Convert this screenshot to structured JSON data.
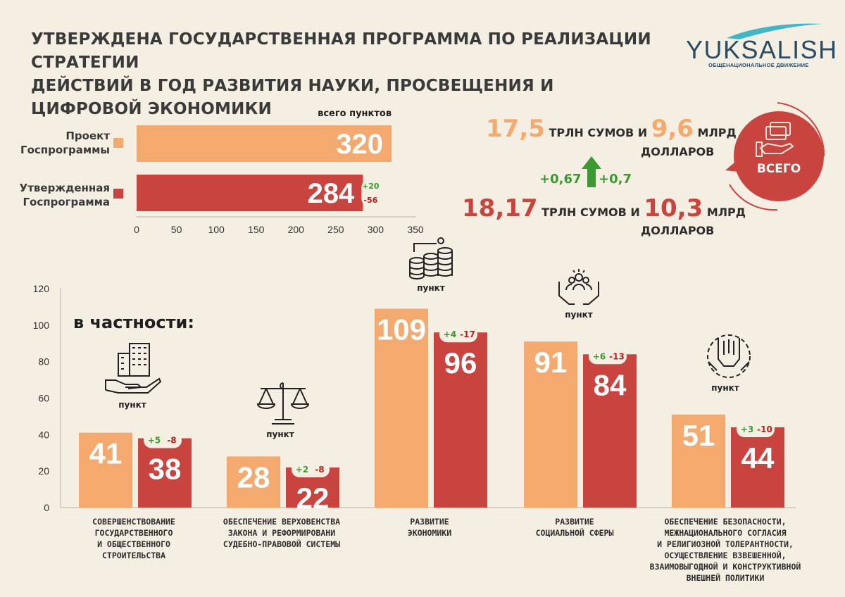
{
  "header": {
    "title_line1": "УТВЕРЖДЕНА ГОСУДАРСТВЕННАЯ ПРОГРАММА ПО РЕАЛИЗАЦИИ СТРАТЕГИИ",
    "title_line2": "ДЕЙСТВИЙ В ГОД РАЗВИТИЯ НАУКИ, ПРОСВЕЩЕНИЯ И ЦИФРОВОЙ ЭКОНОМИКИ"
  },
  "logo": {
    "name": "YUKSALISH",
    "subtitle": "ОБЩЕНАЦИОНАЛЬНОЕ ДВИЖЕНИЕ"
  },
  "colors": {
    "project": "#f4a96e",
    "approved": "#c9443e",
    "plus": "#3b9a2f",
    "minus": "#b8201a",
    "bg": "#f5eee3"
  },
  "legend": {
    "project": [
      "Проект",
      "Госпрограммы"
    ],
    "approved": [
      "Утвержденная",
      "Госпрограмма"
    ]
  },
  "funding": {
    "project_trln": "17,5",
    "project_mlrd": "9,6",
    "approved_trln": "18,17",
    "approved_mlrd": "10,3",
    "unit_trln": "ТРЛН СУМОВ И",
    "unit_mlrd": "МЛРД",
    "unit_dollars": "ДОЛЛАРОВ",
    "delta_trln": "+0,67",
    "delta_mlrd": "+0,7",
    "total_badge": "ВСЕГО"
  },
  "chart_data": [
    {
      "type": "bar",
      "orientation": "horizontal",
      "title": "всего пунктов",
      "categories": [
        "Проект Госпрограммы",
        "Утвержденная Госпрограмма"
      ],
      "values": [
        320,
        284
      ],
      "approved_changes": {
        "added": "+20",
        "removed": "-56"
      },
      "xlim": [
        0,
        350
      ],
      "xticks": [
        0,
        50,
        100,
        150,
        200,
        250,
        300,
        350
      ]
    },
    {
      "type": "bar",
      "title": "в частности:",
      "point_label": "пункт",
      "ylim": [
        0,
        120
      ],
      "yticks": [
        0,
        20,
        40,
        60,
        80,
        100,
        120
      ],
      "categories": [
        "Совершенствование государственного и общественного строительства",
        "Обеспечение верховенства закона и реформировании судебно-правовой системы",
        "Развитие экономики",
        "Развитие социальной сферы",
        "Обеспечение безопасности, межнационального согласия и религиозной толерантности, осуществление взвешенной, взаимовыгодной и конструктивной внешней политики"
      ],
      "category_labels": [
        [
          "СОВЕРШЕНСТВОВАНИЕ",
          "ГОСУДАРСТВЕННОГО",
          "И ОБЩЕСТВЕННОГО",
          "СТРОИТЕЛЬСТВА"
        ],
        [
          "ОБЕСПЕЧЕНИЕ ВЕРХОВЕНСТВА",
          "ЗАКОНА И РЕФОРМИРОВАНИ",
          "СУДЕБНО-ПРАВОВОЙ СИСТЕМЫ"
        ],
        [
          "РАЗВИТИЕ",
          "ЭКОНОМИКИ"
        ],
        [
          "РАЗВИТИЕ",
          "СОЦИАЛЬНОЙ СФЕРЫ"
        ],
        [
          "ОБЕСПЕЧЕНИЕ БЕЗОПАСНОСТИ,",
          "МЕЖНАЦИОНАЛЬНОГО СОГЛАСИЯ",
          "И РЕЛИГИОЗНОЙ ТОЛЕРАНТНОСТИ,",
          "ОСУЩЕСТВЛЕНИЕ ВЗВЕШЕННОЙ,",
          "ВЗАИМОВЫГОДНОЙ И КОНСТРУКТИВНОЙ",
          "ВНЕШНЕЙ ПОЛИТИКИ"
        ]
      ],
      "series": [
        {
          "name": "Проект Госпрограммы",
          "values": [
            41,
            28,
            109,
            91,
            51
          ]
        },
        {
          "name": "Утвержденная Госпрограмма",
          "values": [
            38,
            22,
            96,
            84,
            44
          ]
        }
      ],
      "added": [
        "+5",
        "+2",
        "+4",
        "+6",
        "+3"
      ],
      "removed": [
        "-8",
        "-8",
        "-17",
        "-13",
        "-10"
      ]
    }
  ]
}
